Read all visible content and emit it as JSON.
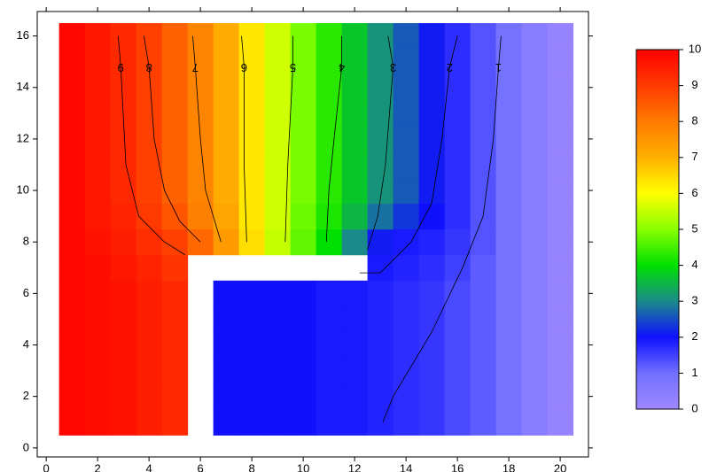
{
  "chart_data": {
    "type": "heatmap",
    "x": [
      1,
      2,
      3,
      4,
      5,
      6,
      7,
      8,
      9,
      10,
      11,
      12,
      13,
      14,
      15,
      16,
      17,
      18,
      19,
      20
    ],
    "y": [
      1,
      2,
      3,
      4,
      5,
      6,
      7,
      8,
      9,
      10,
      11,
      12,
      13,
      14,
      15,
      16
    ],
    "z": [
      [
        9.9,
        9.8,
        9.7,
        9.5,
        9.3,
        null,
        2.0,
        2.0,
        2.0,
        2.0,
        1.9,
        1.9,
        1.8,
        1.7,
        1.6,
        1.4,
        1.2,
        0.9,
        0.5,
        0.2
      ],
      [
        9.9,
        9.8,
        9.7,
        9.5,
        9.3,
        null,
        2.0,
        2.0,
        2.0,
        2.0,
        1.9,
        1.9,
        1.8,
        1.7,
        1.6,
        1.4,
        1.2,
        0.9,
        0.5,
        0.2
      ],
      [
        9.9,
        9.8,
        9.7,
        9.5,
        9.3,
        null,
        2.0,
        2.0,
        2.0,
        2.0,
        1.9,
        1.9,
        1.8,
        1.7,
        1.6,
        1.4,
        1.2,
        0.9,
        0.5,
        0.2
      ],
      [
        9.9,
        9.8,
        9.7,
        9.5,
        9.3,
        null,
        2.0,
        2.0,
        2.0,
        2.0,
        1.9,
        1.9,
        1.8,
        1.7,
        1.6,
        1.4,
        1.2,
        0.9,
        0.5,
        0.2
      ],
      [
        9.9,
        9.8,
        9.7,
        9.5,
        9.3,
        null,
        2.0,
        2.0,
        2.0,
        2.0,
        1.9,
        1.9,
        1.8,
        1.7,
        1.6,
        1.4,
        1.2,
        0.9,
        0.5,
        0.2
      ],
      [
        9.9,
        9.8,
        9.7,
        9.5,
        9.3,
        null,
        2.0,
        2.0,
        2.0,
        2.0,
        1.9,
        1.9,
        1.8,
        1.7,
        1.6,
        1.4,
        1.2,
        0.9,
        0.5,
        0.2
      ],
      [
        9.9,
        9.8,
        9.6,
        9.4,
        9.1,
        null,
        null,
        null,
        null,
        null,
        null,
        null,
        1.9,
        1.8,
        1.7,
        1.5,
        1.2,
        0.9,
        0.5,
        0.2
      ],
      [
        9.9,
        9.7,
        9.5,
        9.2,
        8.9,
        8.3,
        7.4,
        6.4,
        5.5,
        4.7,
        4.0,
        3.0,
        2.1,
        1.9,
        1.8,
        1.6,
        1.3,
        0.9,
        0.5,
        0.2
      ],
      [
        9.9,
        9.6,
        9.4,
        9.0,
        8.6,
        7.9,
        7.2,
        6.3,
        5.6,
        4.8,
        4.2,
        3.5,
        2.8,
        2.3,
        2.0,
        1.7,
        1.3,
        0.9,
        0.5,
        0.2
      ],
      [
        9.9,
        9.6,
        9.3,
        8.9,
        8.4,
        7.8,
        7.1,
        6.3,
        5.6,
        4.9,
        4.3,
        3.7,
        3.1,
        2.6,
        2.1,
        1.7,
        1.3,
        0.9,
        0.5,
        0.2
      ],
      [
        9.9,
        9.6,
        9.3,
        8.9,
        8.4,
        7.8,
        7.1,
        6.3,
        5.6,
        4.9,
        4.3,
        3.7,
        3.1,
        2.6,
        2.1,
        1.7,
        1.3,
        0.9,
        0.5,
        0.2
      ],
      [
        9.9,
        9.6,
        9.3,
        8.9,
        8.4,
        7.8,
        7.1,
        6.3,
        5.6,
        4.9,
        4.3,
        3.7,
        3.1,
        2.6,
        2.1,
        1.7,
        1.3,
        0.9,
        0.5,
        0.2
      ],
      [
        9.9,
        9.6,
        9.3,
        8.9,
        8.4,
        7.8,
        7.1,
        6.3,
        5.6,
        4.9,
        4.3,
        3.7,
        3.1,
        2.6,
        2.1,
        1.7,
        1.3,
        0.9,
        0.5,
        0.2
      ],
      [
        9.9,
        9.6,
        9.3,
        8.9,
        8.4,
        7.8,
        7.1,
        6.3,
        5.6,
        4.9,
        4.3,
        3.7,
        3.1,
        2.6,
        2.1,
        1.7,
        1.3,
        0.9,
        0.5,
        0.2
      ],
      [
        9.9,
        9.6,
        9.3,
        8.9,
        8.4,
        7.8,
        7.1,
        6.3,
        5.6,
        4.9,
        4.3,
        3.7,
        3.1,
        2.6,
        2.1,
        1.7,
        1.3,
        0.9,
        0.5,
        0.2
      ],
      [
        9.9,
        9.6,
        9.3,
        8.9,
        8.4,
        7.8,
        7.1,
        6.3,
        5.6,
        4.9,
        4.3,
        3.7,
        3.1,
        2.6,
        2.1,
        1.7,
        1.3,
        0.9,
        0.5,
        0.2
      ]
    ],
    "colorscale": [
      [
        0,
        "#a088ff"
      ],
      [
        1,
        "#7070ff"
      ],
      [
        2,
        "#1010ff"
      ],
      [
        3,
        "#1a8a8a"
      ],
      [
        4,
        "#00e000"
      ],
      [
        5,
        "#88ff00"
      ],
      [
        6,
        "#ffff00"
      ],
      [
        7,
        "#ffb000"
      ],
      [
        8,
        "#ff7a00"
      ],
      [
        9,
        "#ff3a00"
      ],
      [
        10,
        "#ff0000"
      ]
    ],
    "clim": [
      0,
      10
    ],
    "cticks": [
      0,
      1,
      2,
      3,
      4,
      5,
      6,
      7,
      8,
      9,
      10
    ],
    "contours": [
      {
        "level": 1,
        "x": [
          17.7,
          17.6,
          17.4,
          17.0,
          16.2,
          15.0,
          13.5,
          13.1
        ],
        "y": [
          16,
          14.8,
          12,
          9,
          7,
          4.5,
          2,
          1
        ]
      },
      {
        "level": 2,
        "x": [
          16.0,
          15.7,
          15.4,
          15.0,
          14.2,
          13.0,
          12.2
        ],
        "y": [
          16,
          14.8,
          12,
          9.5,
          8,
          6.8,
          6.8
        ]
      },
      {
        "level": 3,
        "x": [
          13.3,
          13.5,
          13.2,
          12.9,
          12.5
        ],
        "y": [
          16,
          14.8,
          11,
          9,
          7.7
        ]
      },
      {
        "level": 4,
        "x": [
          11.5,
          11.5,
          11.2,
          11.0,
          10.9
        ],
        "y": [
          16,
          14.8,
          12,
          10,
          8
        ]
      },
      {
        "level": 5,
        "x": [
          9.6,
          9.6,
          9.4,
          9.3
        ],
        "y": [
          16,
          14.8,
          11,
          8
        ]
      },
      {
        "level": 6,
        "x": [
          7.6,
          7.7,
          7.7,
          7.8
        ],
        "y": [
          16,
          14.8,
          11,
          8
        ]
      },
      {
        "level": 7,
        "x": [
          5.7,
          5.8,
          6.0,
          6.2,
          6.5,
          6.8
        ],
        "y": [
          16,
          14.8,
          12,
          10,
          9,
          8
        ]
      },
      {
        "level": 8,
        "x": [
          3.8,
          4.0,
          4.2,
          4.6,
          5.2,
          6.0
        ],
        "y": [
          16,
          14.8,
          12,
          10,
          8.8,
          8
        ]
      },
      {
        "level": 9,
        "x": [
          2.8,
          2.9,
          3.1,
          3.6,
          4.6,
          5.4
        ],
        "y": [
          16,
          14.8,
          11,
          9,
          8,
          7.5
        ]
      }
    ],
    "xlim": [
      -0.35,
      21.1
    ],
    "ylim": [
      -0.35,
      16.95
    ],
    "xticks": [
      0,
      2,
      4,
      6,
      8,
      10,
      12,
      14,
      16,
      18,
      20
    ],
    "yticks": [
      0,
      2,
      4,
      6,
      8,
      10,
      12,
      14,
      16
    ]
  }
}
